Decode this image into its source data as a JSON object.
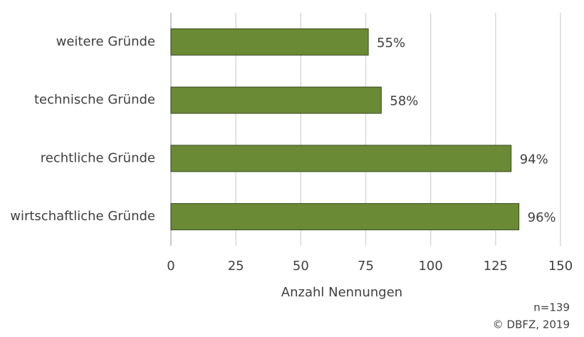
{
  "chart_data": {
    "type": "bar",
    "orientation": "horizontal",
    "categories": [
      "weitere Gründe",
      "technische Gründe",
      "rechtliche Gründe",
      "wirtschaftliche Gründe"
    ],
    "values": [
      76,
      81,
      131,
      134
    ],
    "value_labels": [
      "55%",
      "58%",
      "94%",
      "96%"
    ],
    "color": "#6a8a35",
    "xlabel": "Anzahl Nennungen",
    "xlim": [
      0,
      150
    ],
    "xticks": [
      0,
      25,
      50,
      75,
      100,
      125,
      150
    ],
    "grid": true,
    "annotations": [
      "n=139",
      "© DBFZ, 2019"
    ]
  }
}
